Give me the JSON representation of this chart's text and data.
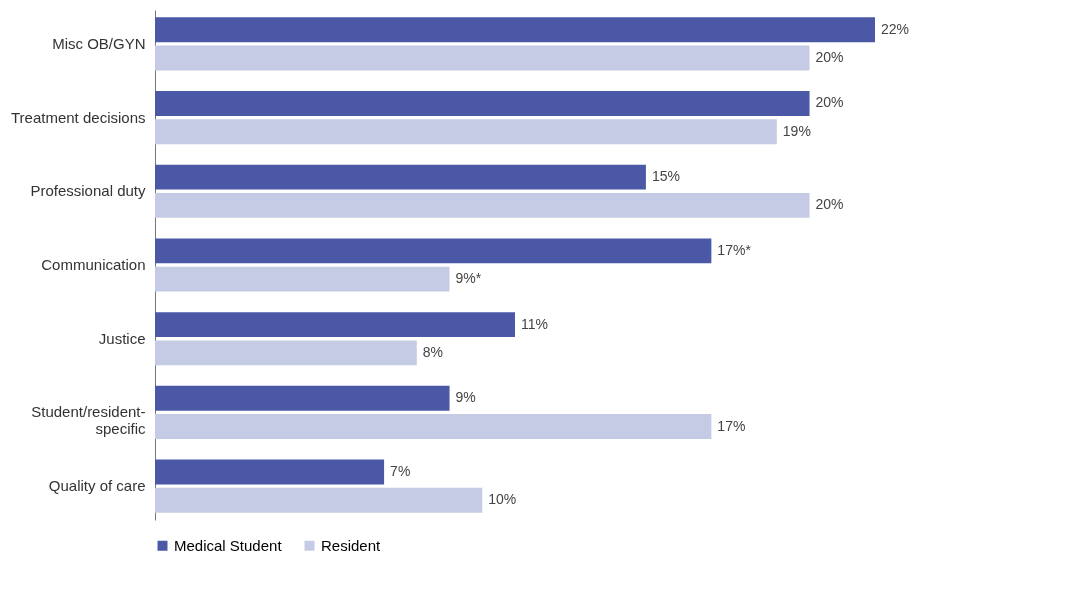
{
  "chart_data": {
    "type": "bar",
    "orientation": "horizontal",
    "categories": [
      "Misc OB/GYN",
      "Treatment decisions",
      "Professional duty",
      "Communication",
      "Justice",
      "Student/resident-specific",
      "Quality of care"
    ],
    "series": [
      {
        "name": "Medical Student",
        "color": "#4a58a6",
        "values": [
          22,
          20,
          15,
          17,
          11,
          9,
          7
        ],
        "value_labels": [
          "22%",
          "20%",
          "15%",
          "17%*",
          "11%",
          "9%",
          "7%"
        ]
      },
      {
        "name": "Resident",
        "color": "#c6cbe5",
        "values": [
          20,
          19,
          20,
          9,
          8,
          17,
          10
        ],
        "value_labels": [
          "20%",
          "19%",
          "20%",
          "9%*",
          "8%",
          "17%",
          "10%"
        ]
      }
    ],
    "legend": "bottom"
  }
}
